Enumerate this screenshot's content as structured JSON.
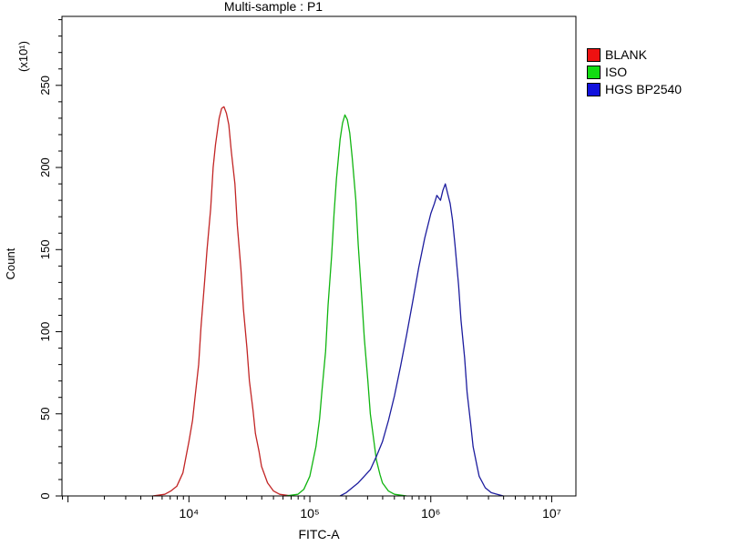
{
  "title": "Multi-sample : P1",
  "axes": {
    "xlabel": "FITC-A",
    "ylabel": "Count",
    "y_unit_label": "(x10¹)"
  },
  "legend": {
    "items": [
      {
        "label": "BLANK",
        "swatch_color": "#ee1111"
      },
      {
        "label": "ISO",
        "swatch_color": "#11dd11"
      },
      {
        "label": "HGS BP2540",
        "swatch_color": "#1111dd"
      }
    ]
  },
  "chart_data": {
    "type": "line",
    "title": "Multi-sample : P1",
    "xlabel": "FITC-A",
    "ylabel": "Count",
    "y_unit_label": "(x10¹)",
    "x_scale": "log10",
    "xlim_log10": [
      2.95,
      7.2
    ],
    "ylim": [
      0,
      292
    ],
    "x_major_tick_exponents": [
      3,
      4,
      5,
      6,
      7
    ],
    "x_tick_labels": [
      {
        "exponent": 4,
        "label": "10⁴"
      },
      {
        "exponent": 5,
        "label": "10⁵"
      },
      {
        "exponent": 6,
        "label": "10⁶"
      },
      {
        "exponent": 7,
        "label": "10⁷"
      }
    ],
    "y_ticks": [
      0,
      50,
      100,
      150,
      200,
      250
    ],
    "y_minor_step": 10,
    "grid": false,
    "legend_position": "top-right-outside",
    "series": [
      {
        "name": "BLANK",
        "color": "#c22525",
        "peak_x_log10": 4.29,
        "peak_y": 237,
        "points": [
          [
            3.7,
            0
          ],
          [
            3.8,
            1
          ],
          [
            3.85,
            3
          ],
          [
            3.9,
            6
          ],
          [
            3.95,
            14
          ],
          [
            4.0,
            33
          ],
          [
            4.03,
            46
          ],
          [
            4.05,
            60
          ],
          [
            4.08,
            80
          ],
          [
            4.1,
            103
          ],
          [
            4.13,
            131
          ],
          [
            4.15,
            150
          ],
          [
            4.18,
            175
          ],
          [
            4.2,
            200
          ],
          [
            4.22,
            214
          ],
          [
            4.25,
            230
          ],
          [
            4.27,
            236
          ],
          [
            4.29,
            237
          ],
          [
            4.31,
            233
          ],
          [
            4.33,
            226
          ],
          [
            4.35,
            210
          ],
          [
            4.38,
            190
          ],
          [
            4.4,
            165
          ],
          [
            4.43,
            138
          ],
          [
            4.45,
            114
          ],
          [
            4.48,
            90
          ],
          [
            4.5,
            70
          ],
          [
            4.53,
            52
          ],
          [
            4.55,
            38
          ],
          [
            4.58,
            27
          ],
          [
            4.6,
            18
          ],
          [
            4.65,
            8
          ],
          [
            4.7,
            3
          ],
          [
            4.75,
            1
          ],
          [
            4.85,
            0
          ]
        ]
      },
      {
        "name": "ISO",
        "color": "#10b510",
        "peak_x_log10": 5.29,
        "peak_y": 232,
        "points": [
          [
            4.8,
            0
          ],
          [
            4.9,
            1
          ],
          [
            4.95,
            4
          ],
          [
            5.0,
            12
          ],
          [
            5.05,
            30
          ],
          [
            5.08,
            47
          ],
          [
            5.1,
            64
          ],
          [
            5.13,
            88
          ],
          [
            5.15,
            116
          ],
          [
            5.18,
            146
          ],
          [
            5.2,
            172
          ],
          [
            5.22,
            193
          ],
          [
            5.25,
            217
          ],
          [
            5.27,
            227
          ],
          [
            5.29,
            232
          ],
          [
            5.31,
            229
          ],
          [
            5.33,
            221
          ],
          [
            5.35,
            206
          ],
          [
            5.38,
            180
          ],
          [
            5.4,
            153
          ],
          [
            5.43,
            120
          ],
          [
            5.45,
            96
          ],
          [
            5.48,
            70
          ],
          [
            5.5,
            50
          ],
          [
            5.53,
            33
          ],
          [
            5.55,
            22
          ],
          [
            5.58,
            13
          ],
          [
            5.6,
            8
          ],
          [
            5.65,
            3
          ],
          [
            5.7,
            1
          ],
          [
            5.8,
            0
          ]
        ]
      },
      {
        "name": "HGS BP2540",
        "color": "#1c1c9e",
        "peak_x_log10": 6.12,
        "peak_y": 190,
        "points": [
          [
            5.25,
            0
          ],
          [
            5.3,
            2
          ],
          [
            5.35,
            5
          ],
          [
            5.4,
            8
          ],
          [
            5.45,
            12
          ],
          [
            5.5,
            16
          ],
          [
            5.55,
            24
          ],
          [
            5.6,
            33
          ],
          [
            5.65,
            46
          ],
          [
            5.7,
            61
          ],
          [
            5.75,
            79
          ],
          [
            5.8,
            98
          ],
          [
            5.85,
            118
          ],
          [
            5.9,
            139
          ],
          [
            5.95,
            157
          ],
          [
            6.0,
            172
          ],
          [
            6.03,
            178
          ],
          [
            6.05,
            183
          ],
          [
            6.08,
            180
          ],
          [
            6.1,
            186
          ],
          [
            6.12,
            190
          ],
          [
            6.14,
            184
          ],
          [
            6.16,
            178
          ],
          [
            6.18,
            168
          ],
          [
            6.2,
            153
          ],
          [
            6.23,
            128
          ],
          [
            6.25,
            107
          ],
          [
            6.28,
            84
          ],
          [
            6.3,
            63
          ],
          [
            6.33,
            44
          ],
          [
            6.35,
            30
          ],
          [
            6.38,
            19
          ],
          [
            6.4,
            12
          ],
          [
            6.45,
            5
          ],
          [
            6.5,
            2
          ],
          [
            6.55,
            1
          ],
          [
            6.6,
            0
          ]
        ]
      }
    ]
  }
}
